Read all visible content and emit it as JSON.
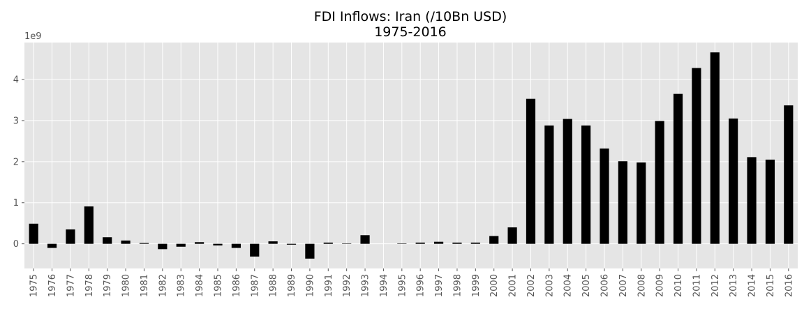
{
  "chart_data": {
    "type": "bar",
    "title": "FDI Inflows: Iran (/10Bn USD)",
    "subtitle": "1975-2016",
    "y_offset_label": "1e9",
    "xlabel": "",
    "ylabel": "",
    "ylim": [
      -0.6,
      4.9
    ],
    "yticks": [
      0,
      1,
      2,
      3,
      4
    ],
    "ytick_labels": [
      "0",
      "1",
      "2",
      "3",
      "4"
    ],
    "grid": true,
    "legend": "none",
    "colors": {
      "bar": "#000000",
      "background": "#e5e5e5",
      "grid": "#ffffff",
      "tick": "#555555"
    },
    "categories": [
      "1975",
      "1976",
      "1977",
      "1978",
      "1979",
      "1980",
      "1981",
      "1982",
      "1983",
      "1984",
      "1985",
      "1986",
      "1987",
      "1988",
      "1989",
      "1990",
      "1991",
      "1992",
      "1993",
      "1994",
      "1995",
      "1996",
      "1997",
      "1998",
      "1999",
      "2000",
      "2001",
      "2002",
      "2003",
      "2004",
      "2005",
      "2006",
      "2007",
      "2008",
      "2009",
      "2010",
      "2011",
      "2012",
      "2013",
      "2014",
      "2015",
      "2016"
    ],
    "values": [
      0.49,
      -0.1,
      0.35,
      0.91,
      0.16,
      0.08,
      0.02,
      -0.13,
      -0.07,
      0.04,
      -0.04,
      -0.1,
      -0.31,
      0.06,
      -0.02,
      -0.36,
      0.03,
      0.01,
      0.21,
      0.0,
      0.01,
      0.03,
      0.05,
      0.03,
      0.03,
      0.19,
      0.4,
      3.53,
      2.88,
      3.04,
      2.88,
      2.32,
      2.01,
      1.98,
      2.99,
      3.65,
      4.28,
      4.66,
      3.05,
      2.11,
      2.05,
      3.37
    ]
  }
}
